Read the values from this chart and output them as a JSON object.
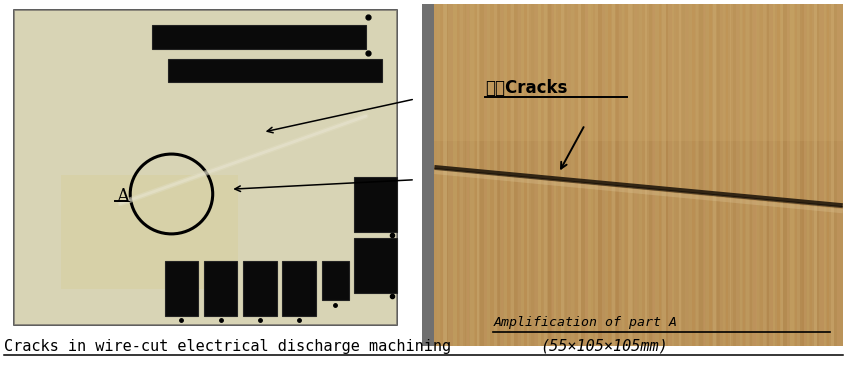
{
  "fig_width": 8.47,
  "fig_height": 3.91,
  "dpi": 100,
  "bg_color": "#ffffff",
  "outer_bg": "#888888",
  "piece_color": "#ccc8a8",
  "piece_edge": "#555555",
  "slot_color": "#0a0a0a",
  "right_bg_main": "#b89060",
  "right_bg_top": "#c8a870",
  "right_bg_bottom": "#a07848",
  "crack_color": "#282010",
  "caption_fontsize": 11,
  "label_cracks": "裂纹Cracks",
  "label_A": "A",
  "label_amplification": "Amplification of part A",
  "caption_text1": "Cracks in wire-cut electrical discharge machining",
  "caption_text2": "(55×105×105mm)"
}
